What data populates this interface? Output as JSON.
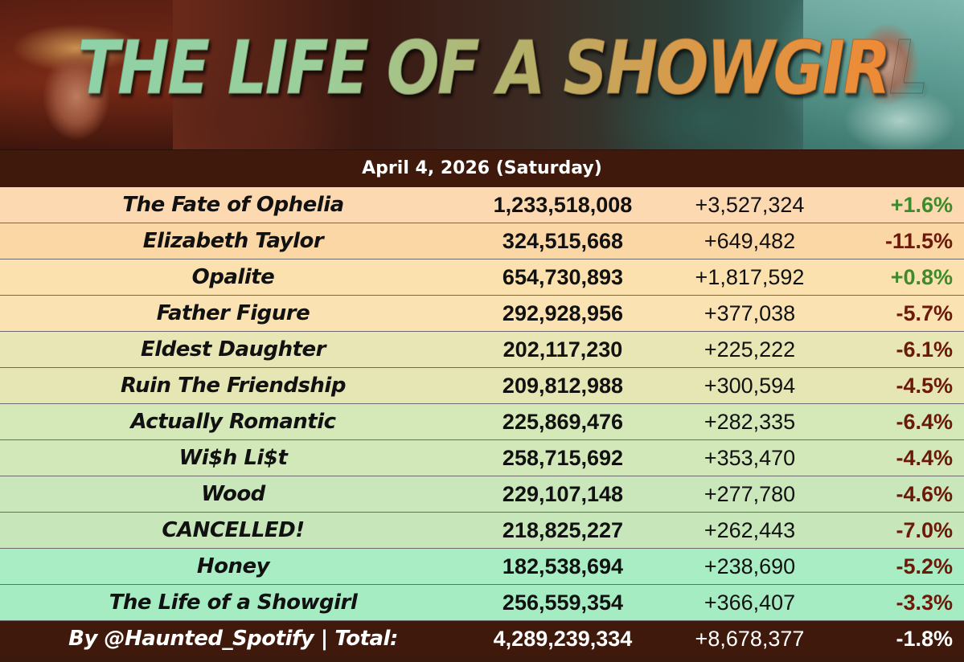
{
  "banner": {
    "title": "THE LIFE OF A SHOWGIRL"
  },
  "date": "April 4, 2026 (Saturday)",
  "colors": {
    "header_bg": "#3e190c",
    "positive": "#3e8a2c",
    "negative": "#6b1a0a"
  },
  "rows": [
    {
      "song": "The Fate of Ophelia",
      "total": "1,233,518,008",
      "daily": "+3,527,324",
      "change": "+1.6%",
      "trend": "pos",
      "bg": "#fcd9b0"
    },
    {
      "song": "Elizabeth Taylor",
      "total": "324,515,668",
      "daily": "+649,482",
      "change": "-11.5%",
      "trend": "neg",
      "bg": "#fcd7a6"
    },
    {
      "song": "Opalite",
      "total": "654,730,893",
      "daily": "+1,817,592",
      "change": "+0.8%",
      "trend": "pos",
      "bg": "#fbe1ad"
    },
    {
      "song": "Father Figure",
      "total": "292,928,956",
      "daily": "+377,038",
      "change": "-5.7%",
      "trend": "neg",
      "bg": "#fbe2b2"
    },
    {
      "song": "Eldest Daughter",
      "total": "202,117,230",
      "daily": "+225,222",
      "change": "-6.1%",
      "trend": "neg",
      "bg": "#e8e6b4"
    },
    {
      "song": "Ruin The Friendship",
      "total": "209,812,988",
      "daily": "+300,594",
      "change": "-4.5%",
      "trend": "neg",
      "bg": "#e6e6b4"
    },
    {
      "song": "Actually Romantic",
      "total": "225,869,476",
      "daily": "+282,335",
      "change": "-6.4%",
      "trend": "neg",
      "bg": "#d5e8b8"
    },
    {
      "song": "Wi$h Li$t",
      "total": "258,715,692",
      "daily": "+353,470",
      "change": "-4.4%",
      "trend": "neg",
      "bg": "#d3e8b9"
    },
    {
      "song": "Wood",
      "total": "229,107,148",
      "daily": "+277,780",
      "change": "-4.6%",
      "trend": "neg",
      "bg": "#c9e7ba"
    },
    {
      "song": "CANCELLED!",
      "total": "218,825,227",
      "daily": "+262,443",
      "change": "-7.0%",
      "trend": "neg",
      "bg": "#c7e7bb"
    },
    {
      "song": "Honey",
      "total": "182,538,694",
      "daily": "+238,690",
      "change": "-5.2%",
      "trend": "neg",
      "bg": "#a8edc3"
    },
    {
      "song": "The Life of a Showgirl",
      "total": "256,559,354",
      "daily": "+366,407",
      "change": "-3.3%",
      "trend": "neg",
      "bg": "#a6ecc2"
    }
  ],
  "footer": {
    "label": "By @Haunted_Spotify | Total:",
    "total": "4,289,239,334",
    "daily": "+8,678,377",
    "change": "-1.8%"
  }
}
